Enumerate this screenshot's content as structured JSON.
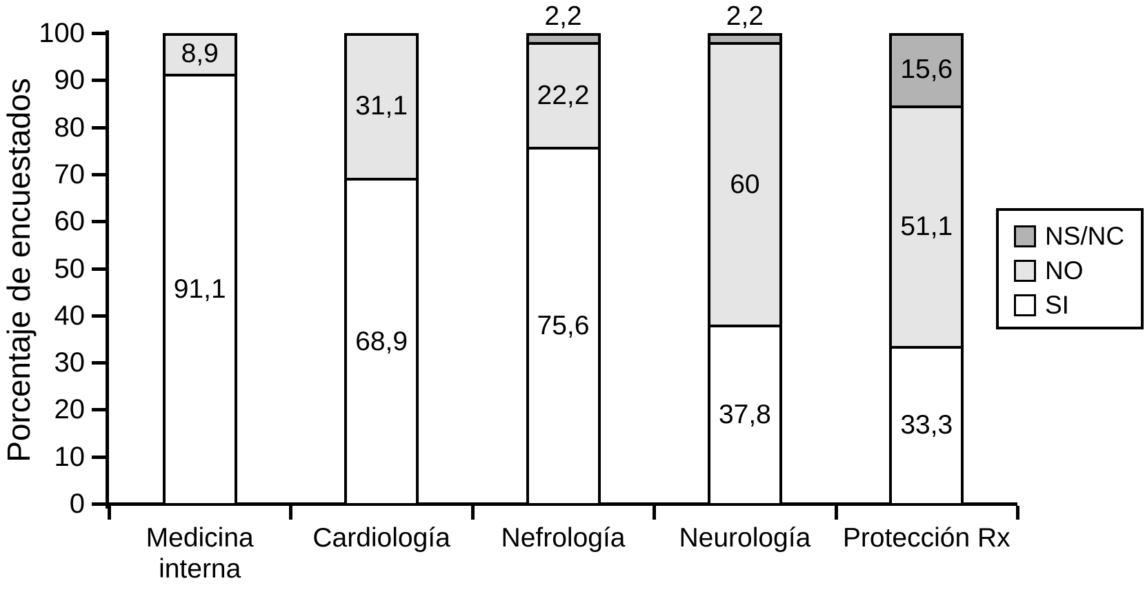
{
  "figure": {
    "background": "#ffffff",
    "ink_color": "#000000"
  },
  "chart_data": {
    "type": "bar",
    "subtype": "stacked_vertical",
    "title": "",
    "xlabel": "",
    "ylabel": "Porcentaje de encuestados",
    "ylim": [
      0,
      100
    ],
    "yticks": [
      0,
      10,
      20,
      30,
      40,
      50,
      60,
      70,
      80,
      90,
      100
    ],
    "grid": false,
    "categories": [
      "Medicina interna",
      "Cardiología",
      "Nefrología",
      "Neurología",
      "Protección Rx"
    ],
    "series": [
      {
        "name": "SI",
        "color": "#ffffff",
        "values": [
          91.1,
          68.9,
          75.6,
          37.8,
          33.3
        ],
        "labels": [
          "91,1",
          "68,9",
          "75,6",
          "37,8",
          "33,3"
        ]
      },
      {
        "name": "NO",
        "color": "#e5e5e5",
        "values": [
          8.9,
          31.1,
          22.2,
          60,
          51.1
        ],
        "labels": [
          "8,9",
          "31,1",
          "22,2",
          "60",
          "51,1"
        ]
      },
      {
        "name": "NS/NC",
        "color": "#b3b3b3",
        "values": [
          0,
          0,
          2.2,
          2.2,
          15.6
        ],
        "labels": [
          "",
          "",
          "2,2",
          "2,2",
          "15,6"
        ]
      }
    ],
    "legend": {
      "position": "right",
      "order": [
        "NS/NC",
        "NO",
        "SI"
      ]
    },
    "label_decimal_separator": ",",
    "small_segment_labels_outside_below_pct": 5
  }
}
